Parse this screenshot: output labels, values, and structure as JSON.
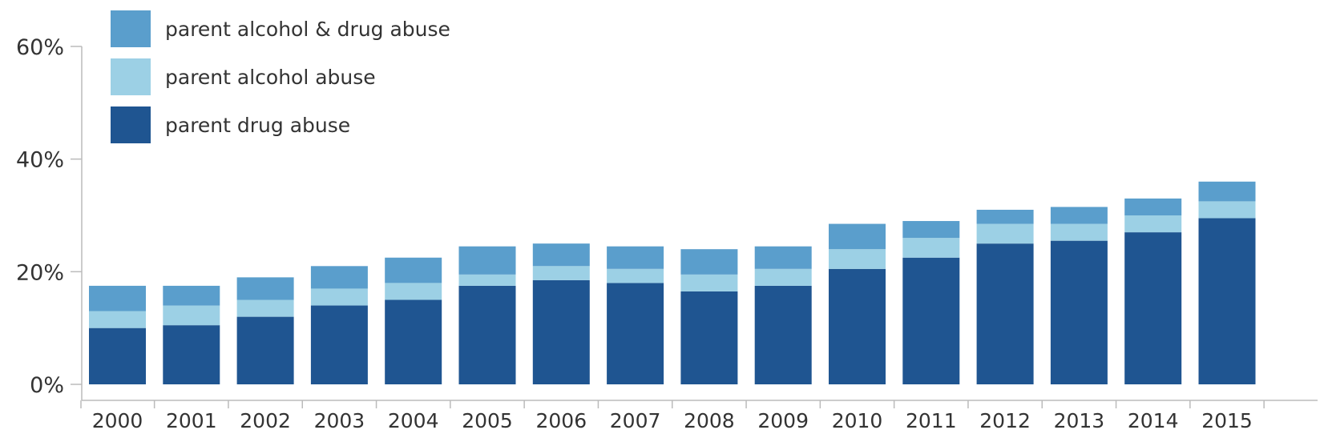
{
  "chart_data": {
    "type": "bar",
    "stacked": true,
    "categories": [
      "2000",
      "2001",
      "2002",
      "2003",
      "2004",
      "2005",
      "2006",
      "2007",
      "2008",
      "2009",
      "2010",
      "2011",
      "2012",
      "2013",
      "2014",
      "2015"
    ],
    "series": [
      {
        "name": "parent drug abuse",
        "color": "#1f5591",
        "values": [
          10,
          10.5,
          12,
          14,
          15,
          17.5,
          18.5,
          18,
          16.5,
          17.5,
          20.5,
          22.5,
          25,
          25.5,
          27,
          29.5
        ]
      },
      {
        "name": "parent alcohol abuse",
        "color": "#9cd0e5",
        "values": [
          3,
          3.5,
          3,
          3,
          3,
          2,
          2.5,
          2.5,
          3,
          3,
          3.5,
          3.5,
          3.5,
          3,
          3,
          3
        ]
      },
      {
        "name": "parent alcohol & drug abuse",
        "color": "#5a9ecc",
        "values": [
          4.5,
          3.5,
          4,
          4,
          4.5,
          5,
          4,
          4,
          4.5,
          4,
          4.5,
          3,
          2.5,
          3,
          3,
          3.5
        ]
      }
    ],
    "legend_order": [
      2,
      1,
      0
    ],
    "legend_position": "top-left",
    "ylim": [
      0,
      60
    ],
    "yticks": [
      0,
      20,
      40,
      60
    ],
    "ytick_labels": [
      "0%",
      "20%",
      "40%",
      "60%"
    ],
    "grid": false
  }
}
